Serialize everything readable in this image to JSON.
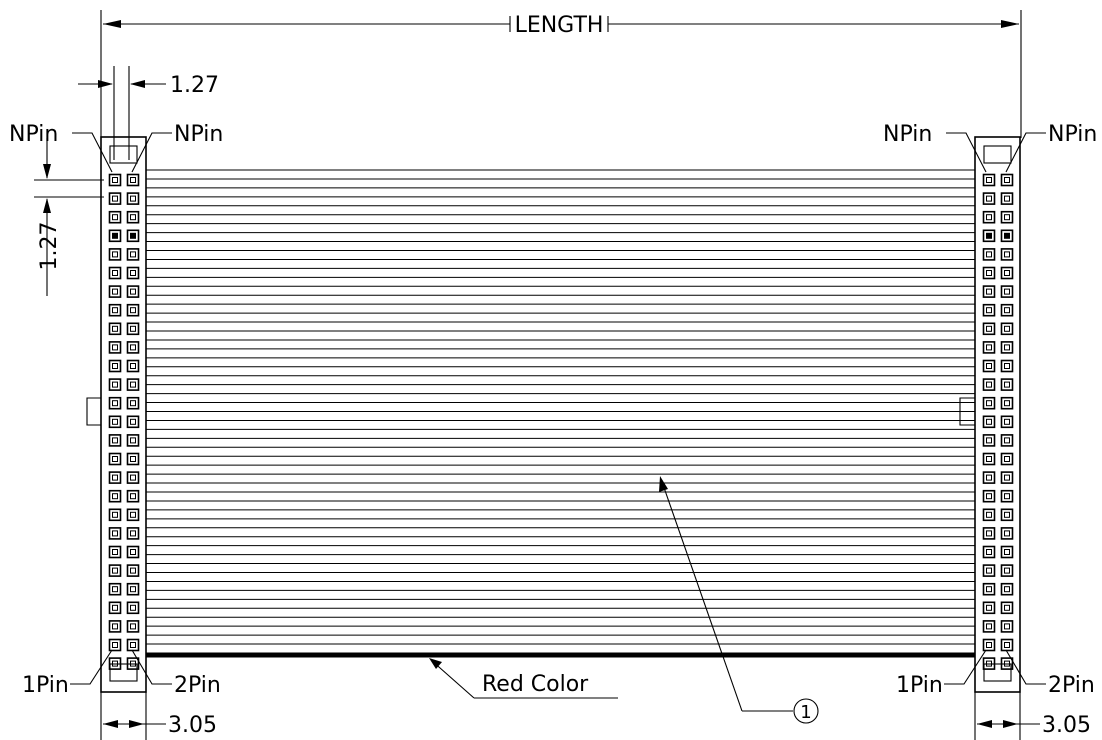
{
  "labels": {
    "length": "LENGTH",
    "pitch_h": "1.27",
    "pitch_v": "1.27",
    "npin_left_outer": "NPin",
    "npin_left_inner": "NPin",
    "npin_right_outer": "NPin",
    "npin_right_inner": "NPin",
    "pin1_left": "1Pin",
    "pin2_left": "2Pin",
    "pin1_right": "1Pin",
    "pin2_right": "2Pin",
    "width_left": "3.05",
    "width_right": "3.05",
    "red_color": "Red Color",
    "item_number": "1"
  }
}
